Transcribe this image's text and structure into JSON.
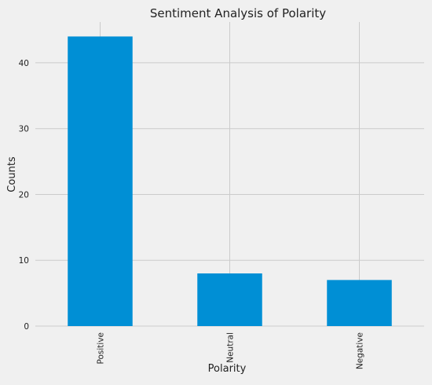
{
  "chart_data": {
    "type": "bar",
    "title": "Sentiment Analysis of Polarity",
    "xlabel": "Polarity",
    "ylabel": "Counts",
    "categories": [
      "Positive",
      "Neutral",
      "Negative"
    ],
    "values": [
      44,
      8,
      7
    ],
    "ylim": [
      0,
      46.2
    ],
    "yticks": [
      0,
      10,
      20,
      30,
      40
    ],
    "ytick_labels": [
      "0",
      "10",
      "20",
      "30",
      "40"
    ],
    "grid": true,
    "bar_color": "#008fd5",
    "background_color": "#f0f0f0",
    "grid_color": "#cbcbcb"
  }
}
